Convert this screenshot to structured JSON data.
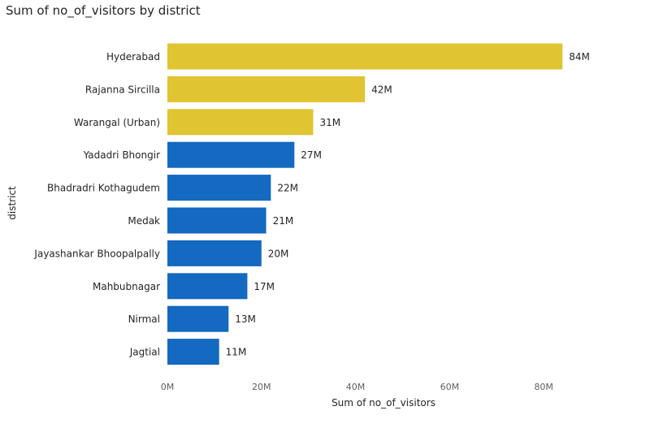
{
  "chart_data": {
    "type": "bar",
    "orientation": "horizontal",
    "title": "Sum of no_of_visitors by district",
    "xlabel": "Sum of no_of_visitors",
    "ylabel": "district",
    "categories": [
      "Hyderabad",
      "Rajanna Sircilla",
      "Warangal (Urban)",
      "Yadadri Bhongir",
      "Bhadradri Kothagudem",
      "Medak",
      "Jayashankar Bhoopalpally",
      "Mahbubnagar",
      "Nirmal",
      "Jagtial"
    ],
    "values": [
      84000000,
      42000000,
      31000000,
      27000000,
      22000000,
      21000000,
      20000000,
      17000000,
      13000000,
      11000000
    ],
    "value_labels": [
      "84M",
      "42M",
      "31M",
      "27M",
      "22M",
      "21M",
      "20M",
      "17M",
      "13M",
      "11M"
    ],
    "highlighted": [
      true,
      true,
      true,
      false,
      false,
      false,
      false,
      false,
      false,
      false
    ],
    "xlim": [
      0,
      90000000
    ],
    "xticks": [
      0,
      20000000,
      40000000,
      60000000,
      80000000
    ],
    "xtick_labels": [
      "0M",
      "20M",
      "40M",
      "60M",
      "80M"
    ],
    "grid": false,
    "colors": {
      "highlight": "#E0C431",
      "default": "#1469C0"
    }
  }
}
